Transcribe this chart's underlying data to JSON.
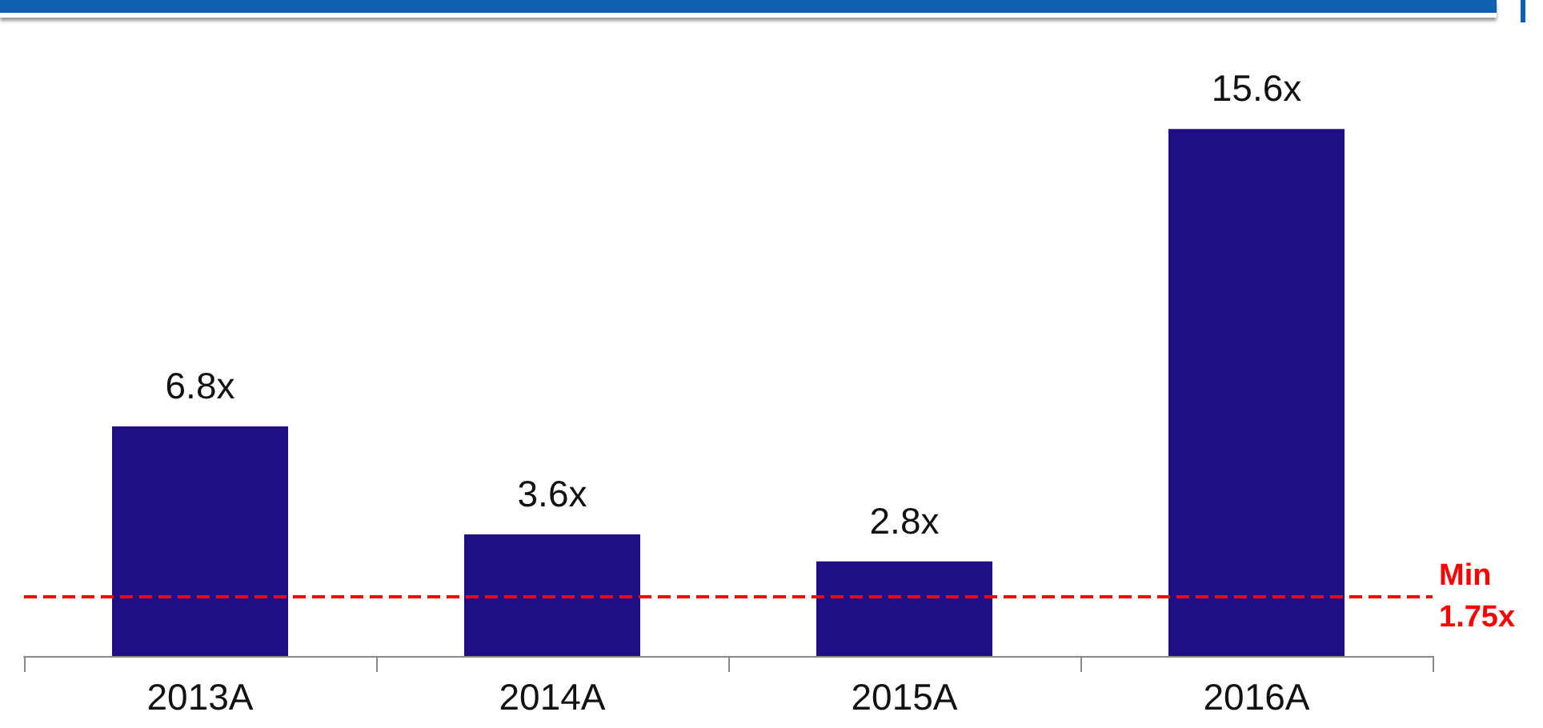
{
  "chart_data": {
    "type": "bar",
    "categories": [
      "2013A",
      "2014A",
      "2015A",
      "2016A"
    ],
    "values": [
      6.8,
      3.6,
      2.8,
      15.6
    ],
    "color": "#1f0e84",
    "value_labels": [
      "6.8x",
      "3.6x",
      "2.8x",
      "15.6x"
    ],
    "ref_lines": [
      {
        "axis": "y",
        "value": 1.75,
        "label": "Min\n1.75x",
        "color": "#ff0000",
        "line_style": "dashed"
      }
    ]
  }
}
